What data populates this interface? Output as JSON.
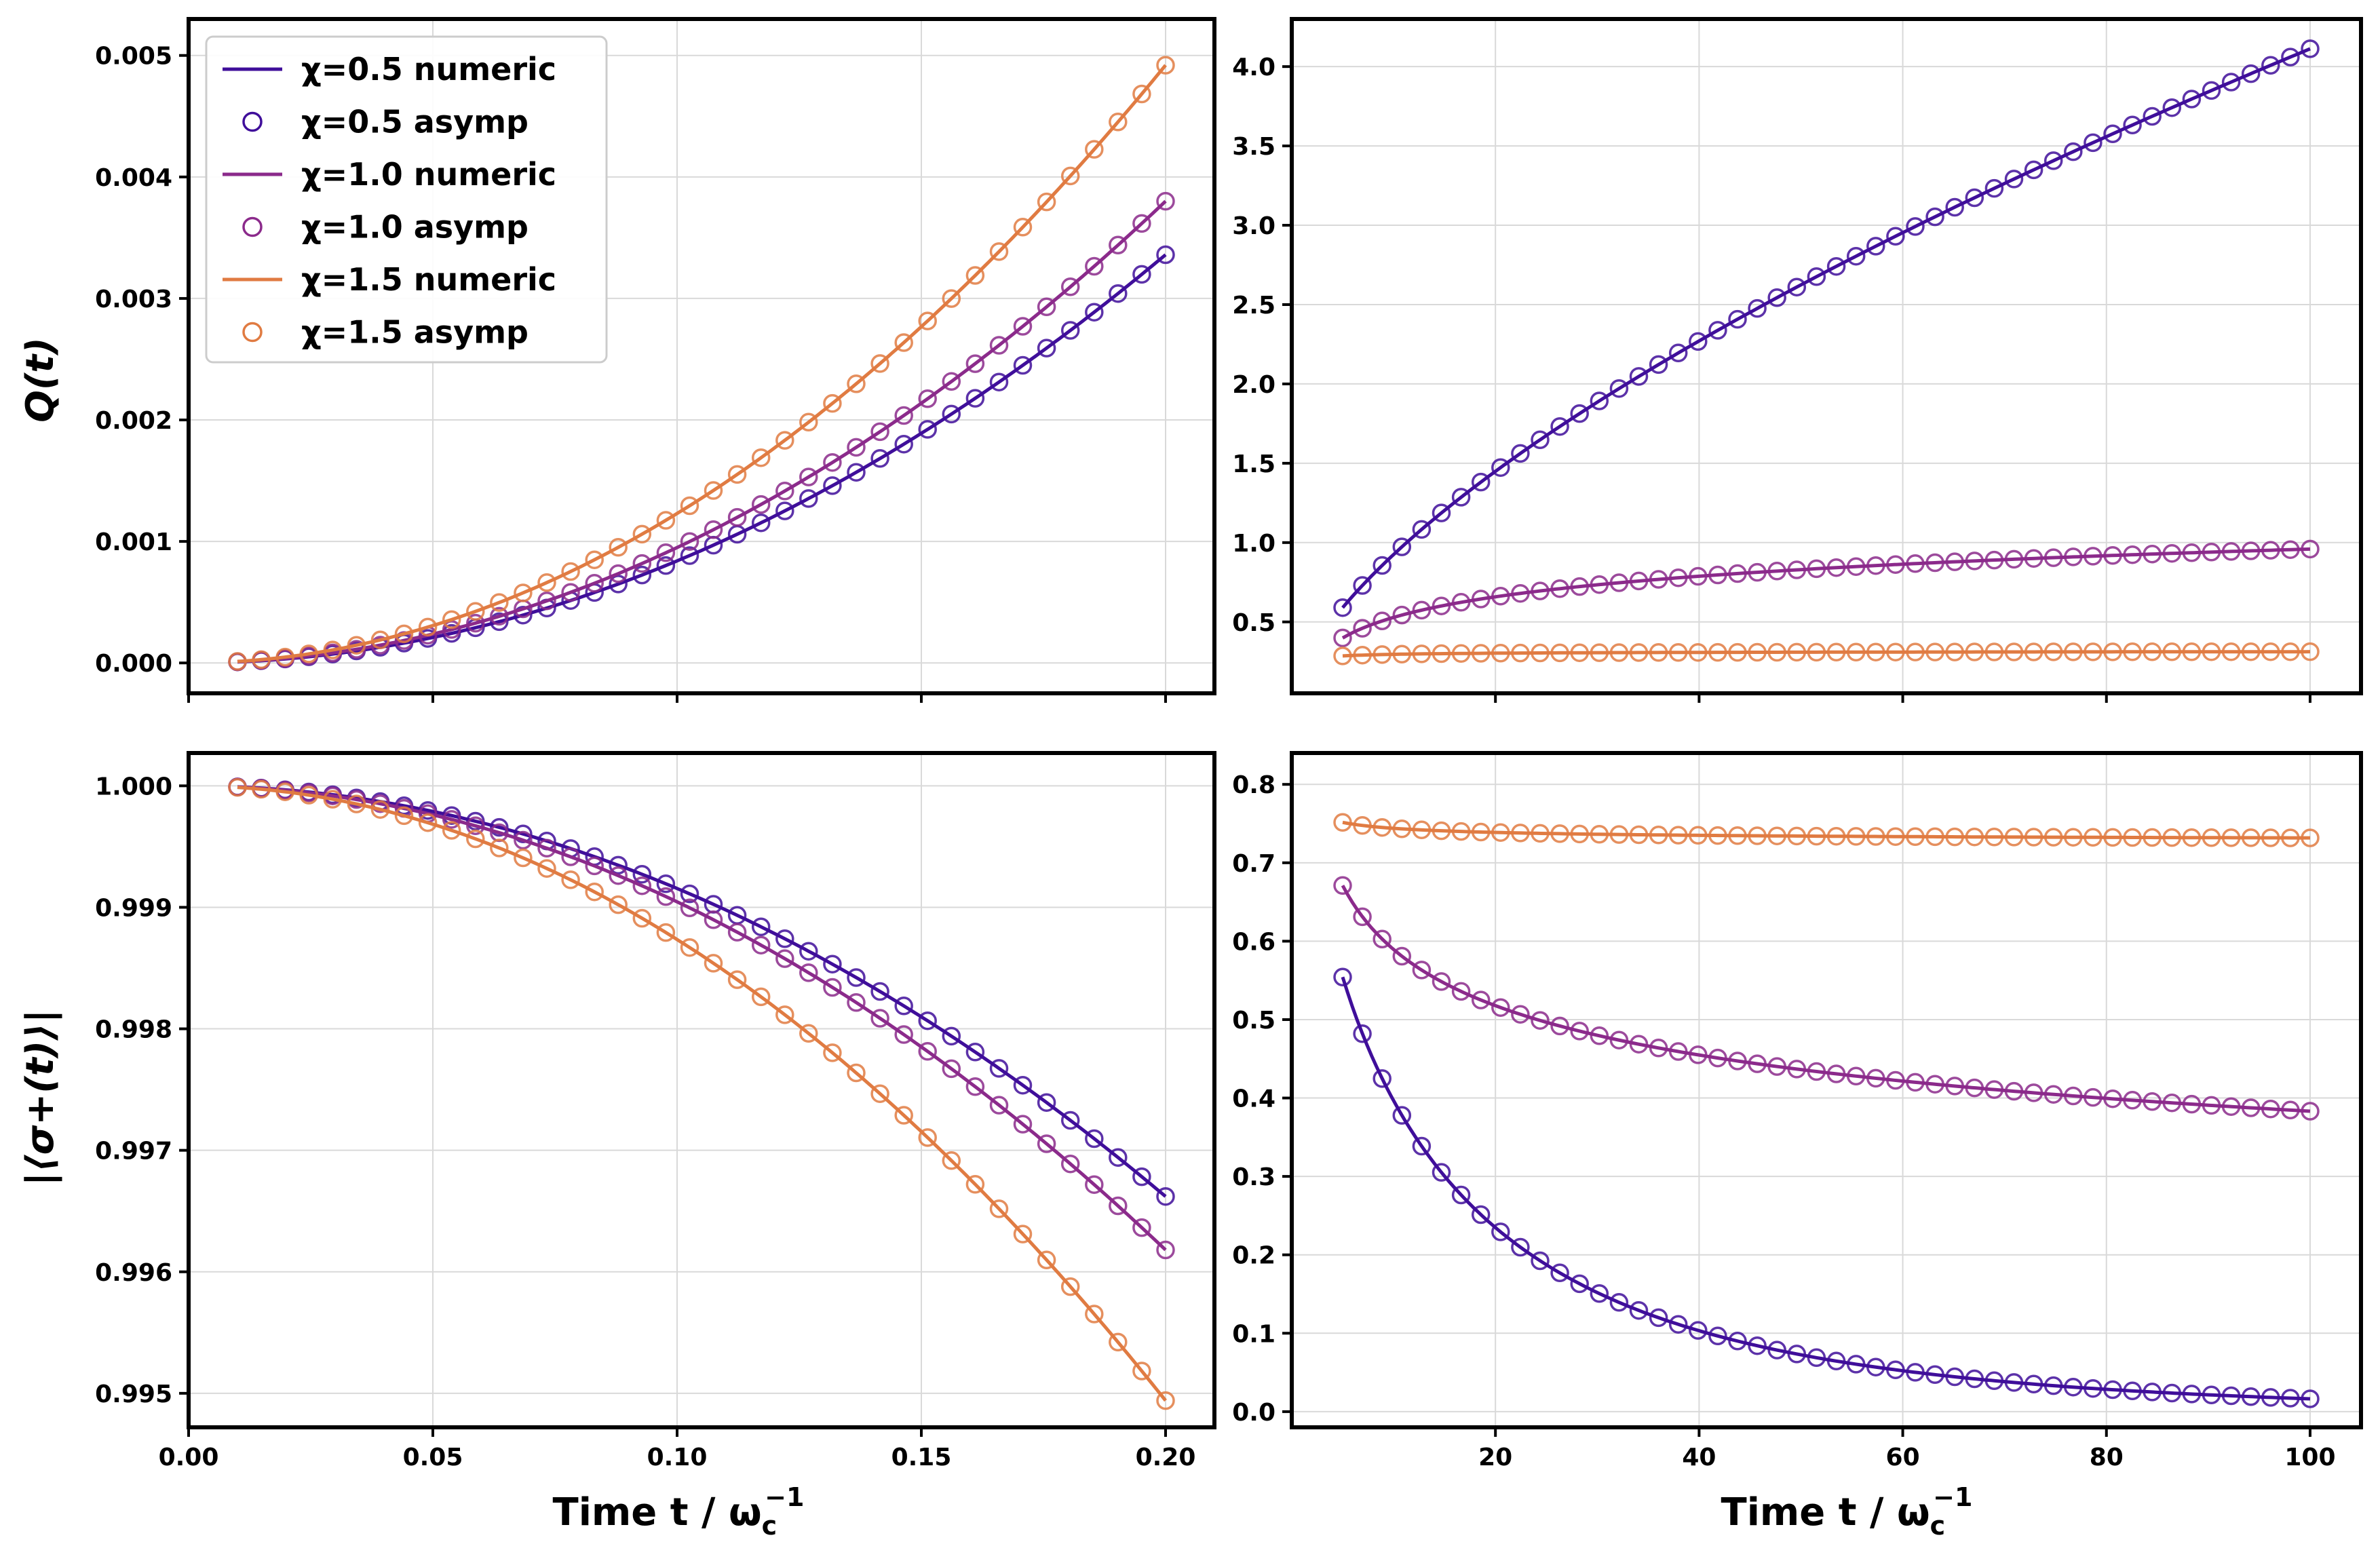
{
  "colors": {
    "chi05": "#3f0e9a",
    "chi10": "#8b2a8b",
    "chi15": "#e07b42"
  },
  "labels": {
    "xlabel_left": "Time t / ω",
    "xlabel_right": "Time t / ω",
    "xlabel_sub": "c",
    "xlabel_sup": "−1",
    "ylabel_top": "Q(t)",
    "ylabel_bottom": "|⟨σ+(t)⟩|"
  },
  "legend": {
    "location": "upper-left",
    "entries": [
      {
        "label": "χ=0.5 numeric",
        "kind": "line",
        "series": "chi05"
      },
      {
        "label": "χ=0.5 asymp",
        "kind": "marker",
        "series": "chi05"
      },
      {
        "label": "χ=1.0 numeric",
        "kind": "line",
        "series": "chi10"
      },
      {
        "label": "χ=1.0 asymp",
        "kind": "marker",
        "series": "chi10"
      },
      {
        "label": "χ=1.5 numeric",
        "kind": "line",
        "series": "chi15"
      },
      {
        "label": "χ=1.5 asymp",
        "kind": "marker",
        "series": "chi15"
      }
    ]
  },
  "chart_data": [
    {
      "id": "tl",
      "type": "line",
      "position": "top-left",
      "xlim": [
        0.0,
        0.21
      ],
      "ylim": [
        -0.00025,
        0.0053
      ],
      "xticks": [
        0.0,
        0.05,
        0.1,
        0.15,
        0.2
      ],
      "xtick_labels": [],
      "yticks": [
        0.0,
        0.001,
        0.002,
        0.003,
        0.004,
        0.005
      ],
      "ytick_labels": [
        "0.000",
        "0.001",
        "0.002",
        "0.003",
        "0.004",
        "0.005"
      ],
      "ylabel": "Q(t)",
      "grid": true,
      "series": [
        {
          "name": "χ=0.5",
          "color_key": "chi05",
          "model": "power",
          "x_range": [
            0.01,
            0.2
          ],
          "n_markers": 40,
          "params": {
            "a": 0.084,
            "p": 2.0
          }
        },
        {
          "name": "χ=1.0",
          "color_key": "chi10",
          "model": "power",
          "x_range": [
            0.01,
            0.2
          ],
          "n_markers": 40,
          "params": {
            "a": 0.095,
            "p": 2.0
          }
        },
        {
          "name": "χ=1.5",
          "color_key": "chi15",
          "model": "power",
          "x_range": [
            0.01,
            0.2
          ],
          "n_markers": 40,
          "params": {
            "a": 0.123,
            "p": 2.0
          }
        }
      ]
    },
    {
      "id": "tr",
      "type": "line",
      "position": "top-right",
      "xlim": [
        0,
        105
      ],
      "ylim": [
        0.05,
        4.3
      ],
      "xticks": [
        20,
        40,
        60,
        80,
        100
      ],
      "xtick_labels": [],
      "yticks": [
        0.5,
        1.0,
        1.5,
        2.0,
        2.5,
        3.0,
        3.5,
        4.0
      ],
      "ytick_labels": [
        "0.5",
        "1.0",
        "1.5",
        "2.0",
        "2.5",
        "3.0",
        "3.5",
        "4.0"
      ],
      "ylabel": "",
      "grid": true,
      "series": [
        {
          "name": "χ=0.5",
          "color_key": "chi05",
          "model": "power",
          "x_range": [
            5,
            100
          ],
          "n_markers": 50,
          "params": {
            "a": 0.208,
            "p": 0.648
          }
        },
        {
          "name": "χ=1.0",
          "color_key": "chi10",
          "model": "log",
          "x_range": [
            5,
            100
          ],
          "n_markers": 50,
          "params": {
            "a": 0.098,
            "b": 0.187
          }
        },
        {
          "name": "χ=1.5",
          "color_key": "chi15",
          "model": "sat",
          "x_range": [
            5,
            100
          ],
          "n_markers": 50,
          "params": {
            "inf": 0.32,
            "c": 0.48
          }
        }
      ]
    },
    {
      "id": "bl",
      "type": "line",
      "position": "bottom-left",
      "xlim": [
        0.0,
        0.21
      ],
      "ylim": [
        0.99472,
        1.00027
      ],
      "xticks": [
        0.0,
        0.05,
        0.1,
        0.15,
        0.2
      ],
      "xtick_labels": [
        "0.00",
        "0.05",
        "0.10",
        "0.15",
        "0.20"
      ],
      "yticks": [
        0.995,
        0.996,
        0.997,
        0.998,
        0.999,
        1.0
      ],
      "ytick_labels": [
        "0.995",
        "0.996",
        "0.997",
        "0.998",
        "0.999",
        "1.000"
      ],
      "ylabel": "|⟨σ+(t)⟩|",
      "xlabel": "Time t / ωc−1",
      "grid": true,
      "series": [
        {
          "name": "χ=0.5",
          "color_key": "chi05",
          "model": "power",
          "x_range": [
            0.01,
            0.2
          ],
          "n_markers": 40,
          "params": {
            "a": -0.0845,
            "p": 2.0,
            "c": 1.0
          }
        },
        {
          "name": "χ=1.0",
          "color_key": "chi10",
          "model": "power",
          "x_range": [
            0.01,
            0.2
          ],
          "n_markers": 40,
          "params": {
            "a": -0.0955,
            "p": 2.0,
            "c": 1.0
          }
        },
        {
          "name": "χ=1.5",
          "color_key": "chi15",
          "model": "power",
          "x_range": [
            0.01,
            0.2
          ],
          "n_markers": 40,
          "params": {
            "a": -0.1265,
            "p": 2.0,
            "c": 1.0
          }
        }
      ]
    },
    {
      "id": "br",
      "type": "line",
      "position": "bottom-right",
      "xlim": [
        0,
        105
      ],
      "ylim": [
        -0.02,
        0.84
      ],
      "xticks": [
        20,
        40,
        60,
        80,
        100
      ],
      "xtick_labels": [
        "20",
        "40",
        "60",
        "80",
        "100"
      ],
      "yticks": [
        0.0,
        0.1,
        0.2,
        0.3,
        0.4,
        0.5,
        0.6,
        0.7,
        0.8
      ],
      "ytick_labels": [
        "0.0",
        "0.1",
        "0.2",
        "0.3",
        "0.4",
        "0.5",
        "0.6",
        "0.7",
        "0.8"
      ],
      "ylabel": "",
      "xlabel": "Time t / ωc−1",
      "grid": true,
      "series": [
        {
          "name": "χ=0.5",
          "color_key": "chi05",
          "model": "exp_of_power",
          "x_range": [
            5,
            100
          ],
          "n_markers": 50,
          "params": {
            "a": 0.208,
            "p": 0.648
          }
        },
        {
          "name": "χ=1.0",
          "color_key": "chi10",
          "model": "exp_of_log",
          "x_range": [
            5,
            100
          ],
          "n_markers": 50,
          "params": {
            "a": 0.098,
            "b": 0.187
          }
        },
        {
          "name": "χ=1.5",
          "color_key": "chi15",
          "model": "exp_of_sat",
          "x_range": [
            5,
            100
          ],
          "n_markers": 50,
          "params": {
            "inf": 0.32,
            "c": 0.48
          }
        }
      ]
    }
  ]
}
